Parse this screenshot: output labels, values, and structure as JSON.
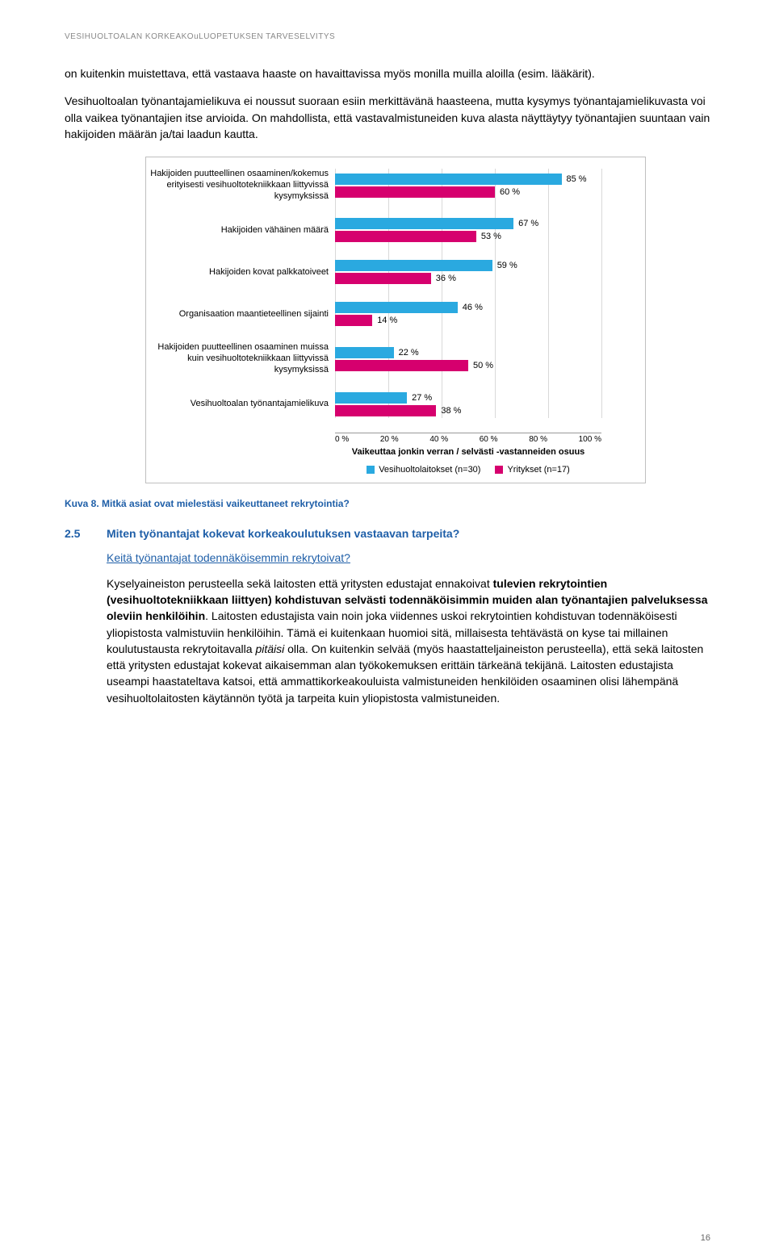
{
  "header": "VESIHUOLTOALAN KORKEAKOuLUOPETUKSEN TARVESELVITYS",
  "para1": "on kuitenkin muistettava, että vastaava haaste on havaittavissa myös monilla muilla aloilla (esim. lääkärit).",
  "para2": "Vesihuoltoalan työnantajamielikuva ei noussut suoraan esiin merkittävänä haasteena, mutta kysymys työnantajamielikuvasta voi olla vaikea työnantajien itse arvioida. On mahdollista, että vastavalmistuneiden kuva alasta näyttäytyy työnantajien suuntaan vain hakijoiden määrän ja/tai laadun kautta.",
  "chart": {
    "categories": [
      "Hakijoiden puutteellinen osaaminen/kokemus erityisesti vesihuoltotekniikkaan liittyvissä kysymyksissä",
      "Hakijoiden vähäinen määrä",
      "Hakijoiden kovat palkkatoiveet",
      "Organisaation maantieteellinen sijainti",
      "Hakijoiden puutteellinen osaaminen muissa kuin vesihuoltotekniikkaan liittyvissä kysymyksissä",
      "Vesihuoltoalan työnantajamielikuva"
    ],
    "series": [
      {
        "name": "Vesihuoltolaitokset (n=30)",
        "color": "#2aa9e0",
        "values": [
          85,
          67,
          59,
          46,
          22,
          27
        ]
      },
      {
        "name": "Yritykset (n=17)",
        "color": "#d6006e",
        "values": [
          60,
          53,
          36,
          14,
          50,
          38
        ]
      }
    ],
    "xticks": [
      "0 %",
      "20 %",
      "40 %",
      "60 %",
      "80 %",
      "100 %"
    ],
    "xaxis_title": "Vaikeuttaa jonkin verran / selvästi -vastanneiden osuus",
    "grid_color": "#d9d9d9",
    "label_fontsize": 11,
    "value_fontsize": 11
  },
  "caption": "Kuva 8. Mitkä asiat ovat mielestäsi vaikeuttaneet rekrytointia?",
  "section": {
    "num": "2.5",
    "title": "Miten työnantajat kokevat korkeakoulutuksen vastaavan tarpeita?"
  },
  "subheading": "Keitä työnantajat todennäköisemmin rekrytoivat?",
  "body_parts": {
    "p1a": "Kyselyaineiston perusteella sekä laitosten että yritysten edustajat ennakoivat ",
    "p1b": "tulevien rekrytointien (vesihuoltotekniikkaan liittyen) kohdistuvan selvästi todennäköisimmin muiden alan työnantajien palveluksessa oleviin henkilöihin",
    "p1c": ". Laitosten edustajista vain noin joka viidennes uskoi rekrytointien kohdistuvan todennäköisesti yliopistosta valmistuviin henkilöihin. Tämä ei kuitenkaan huomioi sitä, millaisesta tehtävästä on kyse tai millainen koulutustausta rekrytoitavalla ",
    "p1d": "pitäisi",
    "p1e": " olla. On kuitenkin selvää (myös haastatteljaineiston perusteella), että sekä laitosten että yritysten edustajat kokevat aikaisemman alan työkokemuksen erittäin tärkeänä tekijänä. Laitosten edustajista useampi haastateltava katsoi, että ammattikorkeakouluista valmistuneiden henkilöiden osaaminen olisi lähempänä vesihuoltolaitosten käytännön työtä ja tarpeita kuin yliopistosta valmistuneiden."
  },
  "page_num": "16"
}
